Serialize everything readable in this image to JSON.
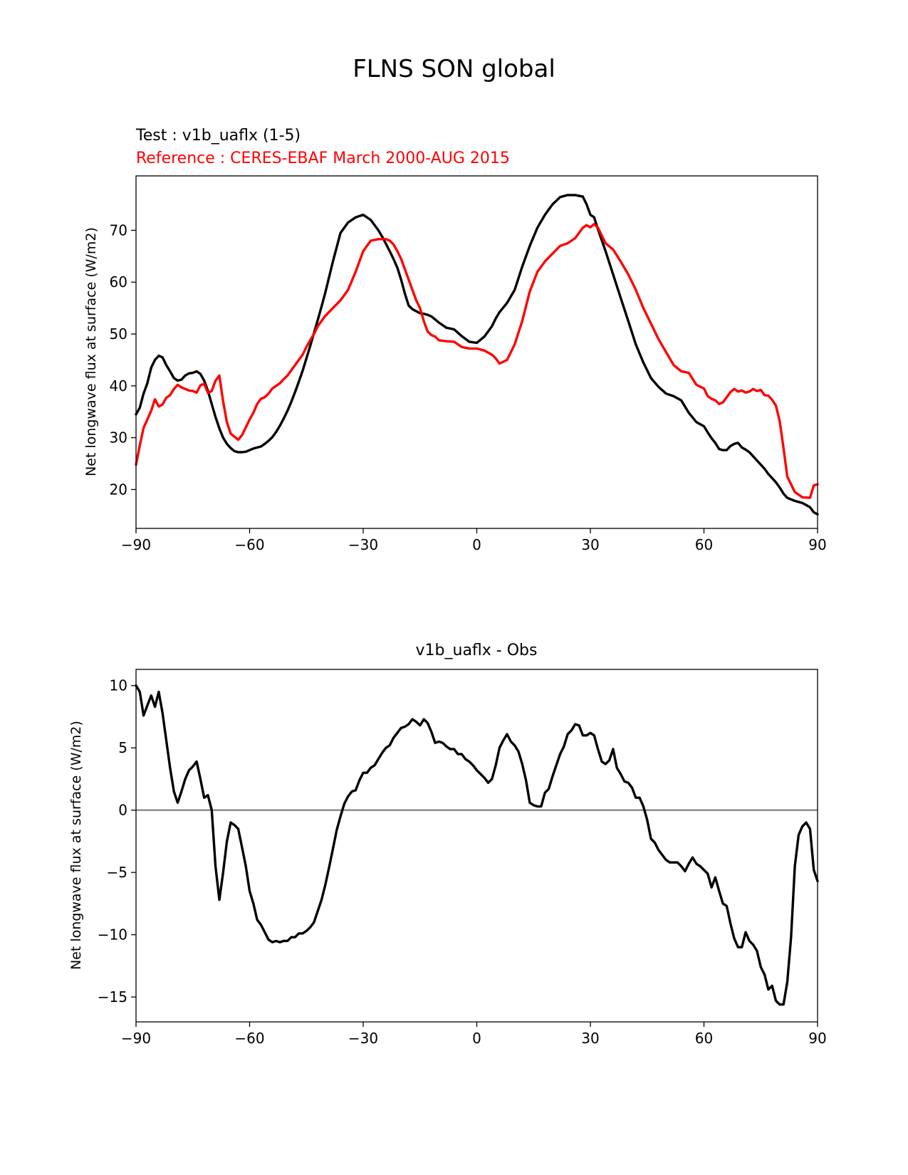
{
  "figure_title": "FLNS SON global",
  "colors": {
    "test": "#000000",
    "reference": "#ff0000",
    "zero_line": "#808080"
  },
  "chart_data": [
    {
      "type": "line",
      "subtitle_test": "Test : v1b_uaflx (1-5)",
      "subtitle_reference": "Reference : CERES-EBAF March 2000-AUG 2015",
      "xlabel": "",
      "ylabel": "Net longwave flux at surface (W/m2)",
      "xlim": [
        -90,
        90
      ],
      "ylim": [
        12.5,
        80.5
      ],
      "xticks": [
        -90,
        -60,
        -30,
        0,
        30,
        60,
        90
      ],
      "xtick_labels": [
        "−90",
        "−60",
        "−30",
        "0",
        "30",
        "60",
        "90"
      ],
      "yticks": [
        20,
        30,
        40,
        50,
        60,
        70
      ],
      "ytick_labels": [
        "20",
        "30",
        "40",
        "50",
        "60",
        "70"
      ],
      "grid": false,
      "series": [
        {
          "role": "test",
          "x": [
            -90,
            -89,
            -88,
            -87,
            -86,
            -85,
            -84,
            -83,
            -82,
            -81,
            -80,
            -79,
            -78,
            -77,
            -76,
            -75,
            -74,
            -73,
            -72,
            -71,
            -70,
            -69,
            -68,
            -67,
            -66,
            -65,
            -64,
            -63,
            -62,
            -61,
            -60,
            -59,
            -58,
            -57,
            -56,
            -55,
            -54,
            -53,
            -52,
            -51,
            -50,
            -49,
            -48,
            -47,
            -46,
            -45,
            -44,
            -43,
            -42,
            -41,
            -40,
            -38,
            -36,
            -34,
            -32,
            -30,
            -28,
            -26,
            -25,
            -24,
            -23,
            -22,
            -21,
            -20,
            -19,
            -18,
            -17,
            -16,
            -15,
            -14,
            -13,
            -12,
            -11,
            -10,
            -8,
            -6,
            -4,
            -2,
            0,
            2,
            4,
            5,
            6,
            8,
            10,
            12,
            14,
            16,
            18,
            20,
            22,
            24,
            26,
            28,
            29,
            30,
            31,
            32,
            34,
            36,
            38,
            40,
            42,
            44,
            46,
            48,
            50,
            52,
            54,
            56,
            58,
            60,
            61,
            62,
            63,
            64,
            65,
            66,
            67,
            68,
            69,
            70,
            71,
            72,
            73,
            74,
            75,
            76,
            77,
            78,
            79,
            80,
            81,
            82,
            84,
            86,
            88,
            89,
            90
          ],
          "y": [
            34.5,
            35.8,
            38.5,
            40.5,
            43.5,
            45,
            45.8,
            45.5,
            44,
            42.8,
            41.5,
            41,
            41.2,
            42,
            42.4,
            42.5,
            42.8,
            42.3,
            41,
            39,
            36.5,
            34,
            31.8,
            30,
            28.8,
            28,
            27.4,
            27.2,
            27.2,
            27.3,
            27.6,
            27.9,
            28.1,
            28.3,
            28.8,
            29.4,
            30.1,
            31.1,
            32.3,
            33.7,
            35.2,
            36.9,
            38.8,
            40.8,
            42.9,
            45.3,
            47.7,
            50.2,
            52.7,
            55.3,
            58,
            64,
            69.5,
            71.5,
            72.5,
            73,
            72,
            70,
            68.8,
            67.4,
            66,
            64.5,
            62.8,
            60.5,
            57.8,
            55.5,
            54.8,
            54.4,
            54,
            53.9,
            53.7,
            53.4,
            52.8,
            52.2,
            51.2,
            50.9,
            49.6,
            48.5,
            48.3,
            49.5,
            51.5,
            53,
            54.2,
            56,
            58.5,
            63,
            67,
            70.5,
            73,
            75,
            76.4,
            76.8,
            76.8,
            76.5,
            75,
            73,
            72.5,
            70.2,
            66,
            61.5,
            57,
            52.5,
            48,
            44.5,
            41.5,
            39.8,
            38.5,
            38,
            37.2,
            34.8,
            33,
            32.2,
            31,
            29.9,
            29,
            27.8,
            27.6,
            27.6,
            28.4,
            28.8,
            29,
            28.1,
            27.7,
            27.2,
            26.4,
            25.6,
            24.8,
            24,
            23,
            22.2,
            21.4,
            20.4,
            19.2,
            18.4,
            17.8,
            17.4,
            16.6,
            15.6,
            15.2
          ]
        },
        {
          "role": "reference",
          "x": [
            -90,
            -89,
            -88,
            -87,
            -86,
            -85,
            -84,
            -83,
            -82,
            -81,
            -80,
            -79,
            -78,
            -77,
            -76,
            -75,
            -74,
            -73,
            -72,
            -71,
            -70,
            -69,
            -68,
            -67,
            -66,
            -65,
            -64,
            -63,
            -62,
            -61,
            -60,
            -59,
            -58,
            -57,
            -56,
            -55,
            -54,
            -53,
            -52,
            -51,
            -50,
            -49,
            -48,
            -47,
            -46,
            -45,
            -44,
            -43,
            -42,
            -41,
            -40,
            -38,
            -36,
            -34,
            -32,
            -30,
            -28,
            -26,
            -25,
            -24,
            -23,
            -22,
            -21,
            -20,
            -19,
            -18,
            -17,
            -16,
            -15,
            -14,
            -13,
            -12,
            -11,
            -10,
            -8,
            -6,
            -4,
            -2,
            0,
            2,
            4,
            5,
            6,
            8,
            10,
            12,
            14,
            16,
            18,
            20,
            22,
            24,
            26,
            28,
            29,
            30,
            31,
            32,
            34,
            36,
            38,
            40,
            42,
            44,
            46,
            48,
            50,
            52,
            54,
            56,
            58,
            60,
            61,
            62,
            63,
            64,
            65,
            66,
            67,
            68,
            69,
            70,
            71,
            72,
            73,
            74,
            75,
            76,
            77,
            78,
            79,
            80,
            81,
            82,
            84,
            86,
            88,
            89,
            90
          ],
          "y": [
            24.8,
            28.5,
            31.9,
            33.5,
            35.2,
            37.4,
            36,
            36.4,
            37.7,
            38.2,
            39.4,
            40.2,
            39.7,
            39.4,
            39.1,
            39,
            38.7,
            40.1,
            40.4,
            38.6,
            39,
            41,
            42,
            37,
            33,
            30.8,
            30.2,
            29.6,
            30.5,
            32,
            33.5,
            34.8,
            36.5,
            37.5,
            37.8,
            38.5,
            39.5,
            40,
            40.5,
            41.3,
            42,
            43,
            44,
            45,
            46,
            47.5,
            48.8,
            50,
            51.5,
            52.5,
            53.5,
            55,
            56.5,
            58.5,
            62,
            66,
            68,
            68.3,
            68.3,
            68.3,
            68,
            67.3,
            66,
            64.5,
            62.5,
            60.5,
            58.5,
            56.5,
            55,
            52.5,
            50.5,
            49.8,
            49.5,
            48.8,
            48.6,
            48.5,
            47.5,
            47.2,
            47.2,
            46.8,
            46,
            45.3,
            44.3,
            45,
            48,
            52.5,
            58.2,
            62,
            64,
            65.5,
            67,
            67.5,
            68.5,
            70.5,
            71,
            70.6,
            71.2,
            70.5,
            67.5,
            66.3,
            64,
            61.5,
            58.5,
            55,
            52,
            49,
            46.5,
            44,
            42.8,
            42.5,
            40.2,
            39.5,
            38,
            37.5,
            37.2,
            36.5,
            36.8,
            37.8,
            38.8,
            39.4,
            38.9,
            39.1,
            38.7,
            38.9,
            39.4,
            39,
            39.2,
            38.2,
            38.1,
            37.3,
            36.2,
            33.2,
            28,
            22.5,
            19.5,
            18.5,
            18.4,
            20.8,
            21
          ]
        }
      ]
    },
    {
      "type": "line",
      "title": "v1b_uaflx - Obs",
      "xlabel": "",
      "ylabel": "Net longwave flux at surface (W/m2)",
      "xlim": [
        -90,
        90
      ],
      "ylim": [
        -17,
        11.3
      ],
      "xticks": [
        -90,
        -60,
        -30,
        0,
        30,
        60,
        90
      ],
      "xtick_labels": [
        "−90",
        "−60",
        "−30",
        "0",
        "30",
        "60",
        "90"
      ],
      "yticks": [
        -15,
        -10,
        -5,
        0,
        5,
        10
      ],
      "ytick_labels": [
        "−15",
        "−10",
        "−5",
        "0",
        "5",
        "10"
      ],
      "grid": false,
      "zero_line": 0,
      "series": [
        {
          "role": "difference",
          "x": [
            -90,
            -89,
            -88,
            -87,
            -86,
            -85,
            -84,
            -83,
            -82,
            -81,
            -80,
            -79,
            -78,
            -77,
            -76,
            -75,
            -74,
            -73,
            -72,
            -71,
            -70,
            -69,
            -68,
            -67,
            -66,
            -65,
            -64,
            -63,
            -62,
            -61,
            -60,
            -59,
            -58,
            -57,
            -56,
            -55,
            -54,
            -53,
            -52,
            -51,
            -50,
            -49,
            -48,
            -47,
            -46,
            -45,
            -44,
            -43,
            -42,
            -41,
            -40,
            -39,
            -38,
            -37,
            -36,
            -35,
            -34,
            -33,
            -32,
            -31,
            -30,
            -29,
            -28,
            -27,
            -26,
            -25,
            -24,
            -23,
            -22,
            -21,
            -20,
            -19,
            -18,
            -17,
            -16,
            -15,
            -14,
            -13,
            -12,
            -11,
            -10,
            -9,
            -8,
            -7,
            -6,
            -5,
            -4,
            -3,
            -2,
            -1,
            0,
            1,
            2,
            3,
            4,
            5,
            6,
            7,
            8,
            9,
            10,
            11,
            12,
            13,
            14,
            15,
            16,
            17,
            18,
            19,
            20,
            21,
            22,
            23,
            24,
            25,
            26,
            27,
            28,
            29,
            30,
            31,
            32,
            33,
            34,
            35,
            36,
            37,
            38,
            39,
            40,
            41,
            42,
            43,
            44,
            45,
            46,
            47,
            48,
            49,
            50,
            51,
            52,
            53,
            54,
            55,
            56,
            57,
            58,
            59,
            60,
            61,
            62,
            63,
            64,
            65,
            66,
            67,
            68,
            69,
            70,
            71,
            72,
            73,
            74,
            75,
            76,
            77,
            78,
            79,
            80,
            81,
            82,
            83,
            84,
            85,
            86,
            87,
            88,
            89,
            90
          ],
          "y": [
            10,
            9.5,
            7.6,
            8.4,
            9.2,
            8.3,
            9.5,
            7.8,
            5.6,
            3.4,
            1.5,
            0.6,
            1.5,
            2.5,
            3.2,
            3.5,
            3.9,
            2.5,
            1,
            1.2,
            0,
            -4.5,
            -7.2,
            -5,
            -2.5,
            -1,
            -1.2,
            -1.5,
            -3,
            -4.5,
            -6.5,
            -7.5,
            -8.8,
            -9.2,
            -9.8,
            -10.4,
            -10.6,
            -10.5,
            -10.6,
            -10.5,
            -10.5,
            -10.2,
            -10.2,
            -9.9,
            -9.9,
            -9.7,
            -9.4,
            -9,
            -8.1,
            -7.2,
            -6,
            -4.6,
            -3.1,
            -1.6,
            -0.5,
            0.5,
            1.1,
            1.5,
            1.6,
            2.4,
            3,
            3,
            3.4,
            3.6,
            4.1,
            4.6,
            5,
            5.2,
            5.8,
            6.2,
            6.6,
            6.7,
            6.9,
            7.3,
            7.1,
            6.8,
            7.3,
            7,
            6.3,
            5.4,
            5.5,
            5.4,
            5.1,
            4.9,
            4.9,
            4.5,
            4.5,
            4.1,
            3.9,
            3.6,
            3.2,
            2.9,
            2.6,
            2.2,
            2.5,
            3.6,
            5,
            5.6,
            6.1,
            5.5,
            5.2,
            4.7,
            3.7,
            2.4,
            0.6,
            0.4,
            0.3,
            0.3,
            1.4,
            1.7,
            2.7,
            3.6,
            4.5,
            5.1,
            6.1,
            6.4,
            6.9,
            6.8,
            6,
            6,
            6.2,
            6,
            4.9,
            3.9,
            3.7,
            4,
            4.9,
            3.4,
            2.9,
            2.3,
            2.2,
            1.8,
            1,
            1,
            0.3,
            -0.8,
            -2.3,
            -2.6,
            -3.2,
            -3.6,
            -4,
            -4.2,
            -4.2,
            -4.2,
            -4.5,
            -4.9,
            -4.3,
            -3.8,
            -4.3,
            -4.5,
            -4.8,
            -5.1,
            -6.2,
            -5.4,
            -6.5,
            -7.5,
            -7.7,
            -9.1,
            -10.3,
            -11,
            -11,
            -9.8,
            -10.5,
            -10.8,
            -11.3,
            -12.6,
            -13.2,
            -14.4,
            -14.1,
            -15.3,
            -15.6,
            -15.6,
            -13.8,
            -10.2,
            -4.5,
            -2,
            -1.3,
            -1,
            -1.5,
            -4.8,
            -5.7
          ]
        }
      ]
    }
  ]
}
